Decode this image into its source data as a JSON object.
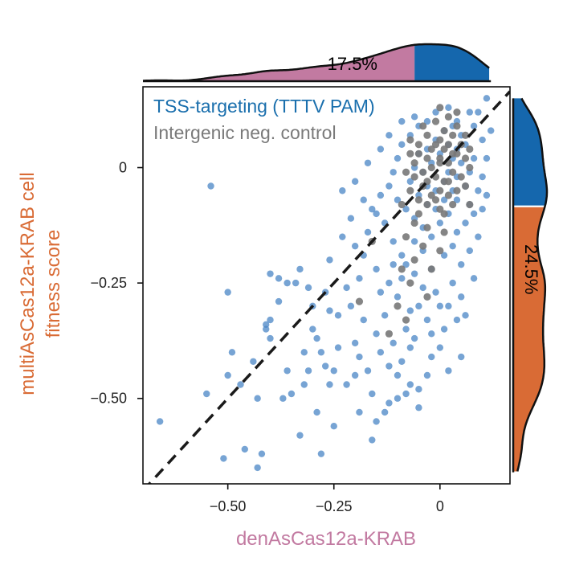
{
  "chart_data": {
    "type": "scatter",
    "xlabel": "denAsCas12a-KRAB",
    "ylabel_lines": [
      "multiAsCas12a-KRAB cell",
      "fitness score"
    ],
    "xlim": [
      -0.7,
      0.165
    ],
    "ylim": [
      -0.685,
      0.175
    ],
    "x_ticks": [
      -0.5,
      -0.25,
      0
    ],
    "x_tick_labels": [
      "−0.50",
      "−0.25",
      "0"
    ],
    "y_ticks": [
      0,
      -0.25,
      -0.5
    ],
    "y_tick_labels": [
      "0",
      "−0.25",
      "−0.50"
    ],
    "diagonal": {
      "style": "dashed",
      "from": [
        -0.7,
        -0.7
      ],
      "to": [
        0.165,
        0.165
      ]
    },
    "legend": [
      {
        "label": "TSS-targeting (TTTV PAM)",
        "color": "#1a6fad"
      },
      {
        "label": "Intergenic neg. control",
        "color": "#7a7a7a"
      }
    ],
    "series": [
      {
        "name": "TSS-targeting (TTTV PAM)",
        "color": "#4a86c5",
        "points": [
          [
            -0.54,
            -0.04
          ],
          [
            -0.66,
            -0.55
          ],
          [
            -0.55,
            -0.49
          ],
          [
            -0.51,
            -0.63
          ],
          [
            -0.43,
            -0.65
          ],
          [
            -0.42,
            -0.62
          ],
          [
            -0.46,
            -0.61
          ],
          [
            -0.33,
            -0.58
          ],
          [
            -0.28,
            -0.62
          ],
          [
            -0.5,
            -0.27
          ],
          [
            -0.49,
            -0.4
          ],
          [
            -0.5,
            -0.45
          ],
          [
            -0.47,
            -0.47
          ],
          [
            -0.43,
            -0.5
          ],
          [
            -0.37,
            -0.5
          ],
          [
            -0.36,
            -0.44
          ],
          [
            -0.32,
            -0.47
          ],
          [
            -0.4,
            -0.33
          ],
          [
            -0.4,
            -0.37
          ],
          [
            -0.41,
            -0.34
          ],
          [
            -0.41,
            -0.35
          ],
          [
            -0.38,
            -0.24
          ],
          [
            -0.34,
            -0.25
          ],
          [
            -0.31,
            -0.26
          ],
          [
            -0.3,
            -0.35
          ],
          [
            -0.28,
            -0.4
          ],
          [
            -0.27,
            -0.43
          ],
          [
            -0.25,
            -0.44
          ],
          [
            -0.24,
            -0.39
          ],
          [
            -0.22,
            -0.47
          ],
          [
            -0.2,
            -0.45
          ],
          [
            -0.19,
            -0.53
          ],
          [
            -0.15,
            -0.55
          ],
          [
            -0.13,
            -0.53
          ],
          [
            -0.12,
            -0.51
          ],
          [
            -0.1,
            -0.5
          ],
          [
            -0.08,
            -0.49
          ],
          [
            -0.05,
            -0.48
          ],
          [
            -0.03,
            -0.45
          ],
          [
            -0.05,
            -0.52
          ],
          [
            -0.16,
            -0.59
          ],
          [
            -0.25,
            -0.56
          ],
          [
            -0.29,
            -0.53
          ],
          [
            -0.35,
            -0.49
          ],
          [
            -0.21,
            -0.3
          ],
          [
            -0.18,
            -0.33
          ],
          [
            -0.15,
            -0.36
          ],
          [
            -0.14,
            -0.4
          ],
          [
            -0.12,
            -0.43
          ],
          [
            -0.11,
            -0.38
          ],
          [
            -0.09,
            -0.42
          ],
          [
            -0.07,
            -0.39
          ],
          [
            -0.06,
            -0.37
          ],
          [
            -0.02,
            -0.41
          ],
          [
            0.02,
            -0.44
          ],
          [
            0.05,
            -0.41
          ],
          [
            0.0,
            -0.3
          ],
          [
            -0.03,
            -0.33
          ],
          [
            -0.07,
            -0.31
          ],
          [
            -0.1,
            -0.28
          ],
          [
            -0.12,
            -0.25
          ],
          [
            -0.15,
            -0.22
          ],
          [
            -0.18,
            -0.19
          ],
          [
            -0.2,
            -0.17
          ],
          [
            -0.22,
            -0.26
          ],
          [
            -0.24,
            -0.32
          ],
          [
            -0.26,
            -0.31
          ],
          [
            -0.33,
            -0.22
          ],
          [
            -0.36,
            -0.25
          ],
          [
            -0.4,
            -0.23
          ],
          [
            -0.23,
            -0.05
          ],
          [
            -0.2,
            -0.03
          ],
          [
            -0.17,
            0.01
          ],
          [
            -0.16,
            -0.09
          ],
          [
            -0.14,
            -0.06
          ],
          [
            -0.13,
            -0.12
          ],
          [
            -0.11,
            -0.16
          ],
          [
            -0.09,
            -0.19
          ],
          [
            -0.08,
            -0.21
          ],
          [
            -0.06,
            -0.23
          ],
          [
            -0.04,
            -0.26
          ],
          [
            -0.02,
            -0.22
          ],
          [
            0.01,
            -0.19
          ],
          [
            0.03,
            -0.17
          ],
          [
            0.04,
            -0.14
          ],
          [
            0.06,
            -0.12
          ],
          [
            0.08,
            -0.1
          ],
          [
            0.07,
            -0.08
          ],
          [
            0.09,
            -0.05
          ],
          [
            0.1,
            -0.02
          ],
          [
            0.11,
            0.02
          ],
          [
            0.1,
            0.06
          ],
          [
            0.11,
            0.15
          ],
          [
            0.07,
            0.12
          ],
          [
            0.04,
            0.1
          ],
          [
            0.02,
            0.13
          ],
          [
            -0.01,
            0.12
          ],
          [
            -0.03,
            0.1
          ],
          [
            -0.05,
            0.09
          ],
          [
            -0.07,
            0.07
          ],
          [
            -0.09,
            0.05
          ],
          [
            -0.1,
            0.02
          ],
          [
            -0.11,
            -0.01
          ],
          [
            -0.12,
            -0.04
          ],
          [
            -0.1,
            -0.07
          ],
          [
            -0.08,
            -0.09
          ],
          [
            -0.06,
            -0.11
          ],
          [
            -0.04,
            -0.13
          ],
          [
            -0.02,
            -0.15
          ],
          [
            0.0,
            -0.12
          ],
          [
            0.02,
            -0.1
          ],
          [
            0.04,
            -0.07
          ],
          [
            0.06,
            -0.04
          ],
          [
            0.07,
            -0.01
          ],
          [
            0.08,
            0.02
          ],
          [
            0.06,
            0.05
          ],
          [
            0.05,
            0.07
          ],
          [
            0.03,
            0.09
          ],
          [
            0.01,
            0.08
          ],
          [
            -0.01,
            0.06
          ],
          [
            -0.03,
            0.04
          ],
          [
            -0.05,
            0.03
          ],
          [
            -0.06,
            0.0
          ],
          [
            -0.07,
            -0.03
          ],
          [
            -0.05,
            -0.06
          ],
          [
            -0.03,
            -0.08
          ],
          [
            -0.01,
            -0.09
          ],
          [
            0.01,
            -0.07
          ],
          [
            0.03,
            -0.05
          ],
          [
            0.04,
            -0.02
          ],
          [
            0.05,
            0.01
          ],
          [
            0.04,
            0.04
          ],
          [
            0.02,
            0.05
          ],
          [
            0.0,
            0.03
          ],
          [
            -0.02,
            0.01
          ],
          [
            -0.04,
            -0.01
          ],
          [
            -0.03,
            -0.04
          ],
          [
            -0.01,
            -0.05
          ],
          [
            0.01,
            -0.03
          ],
          [
            0.02,
            -0.01
          ],
          [
            0.03,
            0.02
          ],
          [
            -0.15,
            -0.1
          ],
          [
            -0.17,
            -0.14
          ],
          [
            -0.19,
            -0.24
          ],
          [
            -0.14,
            -0.27
          ],
          [
            -0.13,
            -0.32
          ],
          [
            -0.08,
            -0.35
          ],
          [
            -0.05,
            -0.3
          ],
          [
            -0.01,
            -0.27
          ],
          [
            0.03,
            -0.25
          ],
          [
            0.05,
            -0.21
          ],
          [
            0.07,
            -0.18
          ],
          [
            0.09,
            -0.15
          ],
          [
            -0.27,
            -0.27
          ],
          [
            -0.3,
            -0.3
          ],
          [
            -0.19,
            -0.41
          ],
          [
            -0.17,
            -0.44
          ],
          [
            -0.1,
            -0.45
          ],
          [
            -0.07,
            -0.47
          ],
          [
            0.01,
            -0.35
          ],
          [
            0.04,
            -0.33
          ],
          [
            -0.12,
            0.07
          ],
          [
            -0.14,
            0.04
          ],
          [
            -0.09,
            0.1
          ],
          [
            -0.06,
            0.11
          ],
          [
            0.08,
            0.09
          ],
          [
            0.09,
            0.12
          ],
          [
            0.12,
            0.08
          ],
          [
            0.11,
            -0.06
          ],
          [
            0.1,
            -0.09
          ],
          [
            -0.18,
            -0.07
          ],
          [
            -0.21,
            -0.11
          ],
          [
            -0.23,
            -0.15
          ],
          [
            -0.26,
            -0.2
          ],
          [
            -0.29,
            -0.37
          ],
          [
            -0.32,
            -0.4
          ],
          [
            -0.02,
            -0.36
          ],
          [
            0.0,
            -0.39
          ],
          [
            -0.09,
            -0.24
          ],
          [
            -0.11,
            -0.21
          ],
          [
            -0.04,
            -0.18
          ],
          [
            -0.06,
            -0.16
          ],
          [
            0.05,
            -0.28
          ],
          [
            0.06,
            -0.32
          ],
          [
            -0.16,
            -0.49
          ],
          [
            -0.2,
            -0.38
          ],
          [
            -0.38,
            -0.29
          ],
          [
            -0.44,
            -0.42
          ],
          [
            -0.31,
            -0.44
          ],
          [
            -0.26,
            -0.47
          ],
          [
            0.08,
            -0.24
          ],
          [
            0.02,
            -0.3
          ]
        ]
      },
      {
        "name": "Intergenic neg. control",
        "color": "#787878",
        "points": [
          [
            -0.02,
            0.0
          ],
          [
            0.0,
            0.02
          ],
          [
            0.02,
            0.01
          ],
          [
            -0.01,
            -0.02
          ],
          [
            0.01,
            -0.03
          ],
          [
            0.03,
            -0.01
          ],
          [
            -0.03,
            0.02
          ],
          [
            -0.04,
            -0.01
          ],
          [
            0.04,
            0.03
          ],
          [
            0.02,
            0.05
          ],
          [
            0.0,
            0.06
          ],
          [
            -0.02,
            0.04
          ],
          [
            -0.05,
            0.05
          ],
          [
            -0.03,
            0.07
          ],
          [
            0.01,
            0.08
          ],
          [
            0.03,
            0.07
          ],
          [
            0.05,
            0.05
          ],
          [
            0.06,
            0.02
          ],
          [
            0.05,
            -0.02
          ],
          [
            0.04,
            -0.05
          ],
          [
            0.02,
            -0.06
          ],
          [
            0.0,
            -0.05
          ],
          [
            -0.02,
            -0.06
          ],
          [
            -0.04,
            -0.04
          ],
          [
            -0.06,
            -0.02
          ],
          [
            -0.06,
            0.01
          ],
          [
            -0.05,
            0.03
          ],
          [
            -0.01,
            0.1
          ],
          [
            0.02,
            0.11
          ],
          [
            0.04,
            0.09
          ],
          [
            0.06,
            0.07
          ],
          [
            0.07,
            0.04
          ],
          [
            0.07,
            0.0
          ],
          [
            0.06,
            -0.04
          ],
          [
            0.03,
            -0.08
          ],
          [
            0.0,
            -0.09
          ],
          [
            -0.03,
            -0.08
          ],
          [
            -0.05,
            -0.07
          ],
          [
            -0.07,
            -0.05
          ],
          [
            -0.08,
            -0.01
          ],
          [
            -0.07,
            0.03
          ],
          [
            -0.07,
            0.06
          ],
          [
            -0.04,
            0.09
          ],
          [
            0.0,
            0.01
          ],
          [
            0.01,
            0.04
          ],
          [
            -0.01,
            0.05
          ],
          [
            0.03,
            0.03
          ],
          [
            -0.03,
            -0.03
          ],
          [
            0.02,
            -0.03
          ],
          [
            -0.01,
            -0.07
          ],
          [
            0.01,
            -0.1
          ],
          [
            -0.05,
            -0.1
          ],
          [
            -0.09,
            -0.08
          ],
          [
            -0.06,
            -0.12
          ],
          [
            -0.03,
            -0.13
          ],
          [
            0.01,
            -0.14
          ],
          [
            -0.08,
            -0.15
          ],
          [
            -0.04,
            -0.17
          ],
          [
            0.0,
            -0.18
          ],
          [
            -0.06,
            -0.2
          ],
          [
            -0.09,
            -0.22
          ],
          [
            -0.02,
            -0.22
          ],
          [
            -0.07,
            -0.25
          ],
          [
            -0.03,
            -0.28
          ],
          [
            -0.1,
            -0.3
          ],
          [
            0.0,
            0.13
          ],
          [
            0.04,
            0.12
          ],
          [
            -0.08,
            -0.33
          ],
          [
            -0.12,
            -0.36
          ],
          [
            -0.19,
            -0.29
          ],
          [
            -0.16,
            -0.16
          ],
          [
            0.07,
            -0.08
          ]
        ]
      }
    ],
    "top_marginal": {
      "highlight_percent_label": "17.5%",
      "highlight_color": "#c27aa1",
      "main_color": "#1567ad",
      "split_x": -0.06
    },
    "right_marginal": {
      "highlight_percent_label": "24.5%",
      "highlight_color": "#d96b35",
      "main_color": "#1567ad",
      "split_y": -0.085
    }
  }
}
